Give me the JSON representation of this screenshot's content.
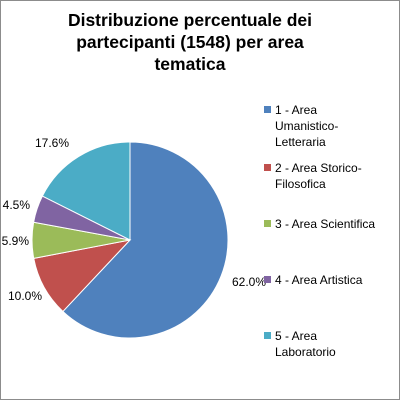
{
  "chart_data": {
    "type": "pie",
    "title_lines": [
      "Distribuzione percentuale dei",
      "partecipanti (1548) per area",
      "tematica"
    ],
    "series": [
      {
        "name": "",
        "slices": [
          {
            "label_lines": [
              "1 - Area",
              "Umanistico-",
              "Letteraria"
            ],
            "value": 62.0,
            "display": "62.0%",
            "color": "#4f81bd"
          },
          {
            "label_lines": [
              "2 - Area Storico-",
              "Filosofica"
            ],
            "value": 10.0,
            "display": "10.0%",
            "color": "#c0504d"
          },
          {
            "label_lines": [
              "3 - Area Scientifica"
            ],
            "value": 5.9,
            "display": "5.9%",
            "color": "#9bbb59"
          },
          {
            "label_lines": [
              "4 - Area Artistica"
            ],
            "value": 4.5,
            "display": "4.5%",
            "color": "#8064a2"
          },
          {
            "label_lines": [
              "5 - Area",
              "Laboratorio"
            ],
            "value": 17.6,
            "display": "17.6%",
            "color": "#4bacc6"
          }
        ]
      }
    ],
    "legend_position": "right",
    "start_angle": "12 o'clock, clockwise",
    "border_color": "#8c8c8c"
  }
}
